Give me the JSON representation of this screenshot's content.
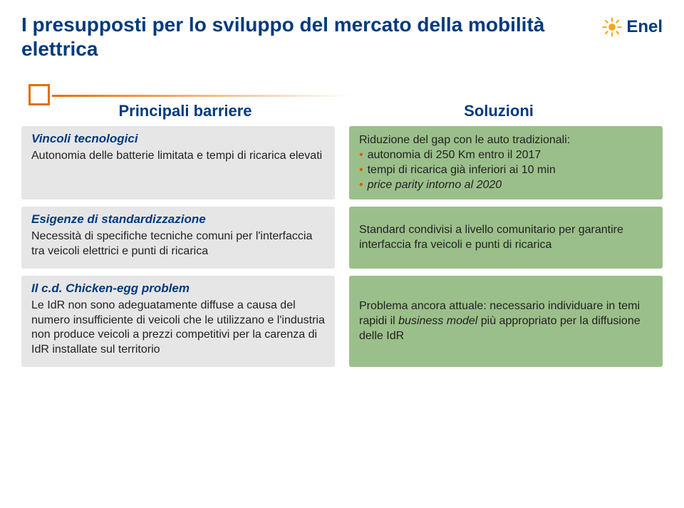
{
  "title": "I presupposti per lo sviluppo del mercato della mobilità elettrica",
  "logo_text": "Enel",
  "col_left": "Principali barriere",
  "col_right": "Soluzioni",
  "rows": [
    {
      "left_title": "Vincoli tecnologici",
      "left_body": "Autonomia delle batterie limitata e tempi di ricarica elevati",
      "right_lead": "Riduzione del gap con le auto tradizionali:",
      "right_bullets": [
        "autonomia di 250 Km entro il 2017",
        "tempi di ricarica già inferiori ai 10 min",
        "price parity intorno al 2020"
      ],
      "right_bullets_italic": [
        false,
        false,
        true
      ]
    },
    {
      "left_title": "Esigenze di standardizzazione",
      "left_body": "Necessità di specifiche tecniche comuni per l'interfaccia tra veicoli elettrici e punti di ricarica",
      "right_body": "Standard condivisi a livello comunitario per garantire interfaccia fra veicoli e punti di ricarica"
    },
    {
      "left_title": "Il c.d. Chicken-egg problem",
      "left_body": "Le IdR non sono adeguatamente diffuse a causa del numero insufficiente di veicoli che le utilizzano e l'industria non produce veicoli a prezzi competitivi per la carenza di IdR installate sul territorio",
      "right_body_html": "Problema ancora attuale: necessario individuare in temi rapidi il <span class=\"ital\">business model</span> più appropriato per la diffusione delle IdR"
    }
  ],
  "colors": {
    "title": "#003a7d",
    "accent": "#e07000",
    "left_bg": "#e6e6e6",
    "right_bg": "#9bbf8a"
  }
}
